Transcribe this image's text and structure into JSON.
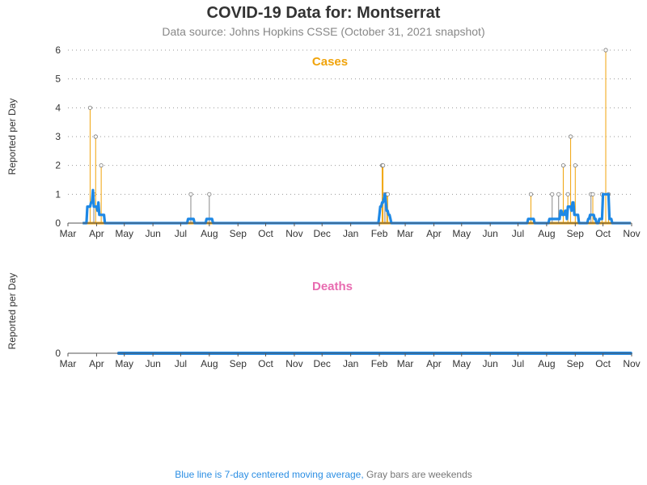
{
  "title": "COVID-19 Data for: Montserrat",
  "subtitle": "Data source: Johns Hopkins CSSE (October 31, 2021 snapshot)",
  "footer": {
    "blue_text": "Blue line is 7-day centered moving average,",
    "gray_text": "Gray bars are weekends"
  },
  "colors": {
    "cases": "#f0a30a",
    "deaths": "#e86bb0",
    "average": "#1e88e5",
    "weekend": "#888888",
    "grid": "#999999"
  },
  "chart_data": [
    {
      "type": "line",
      "title": "Cases",
      "ylabel": "Reported per Day",
      "ylim": [
        0,
        6
      ],
      "yticks": [
        0,
        1,
        2,
        3,
        4,
        5,
        6
      ],
      "grid": "horizontal dotted",
      "x_ticks": [
        "Mar",
        "Apr",
        "May",
        "Jun",
        "Jul",
        "Aug",
        "Sep",
        "Oct",
        "Nov",
        "Dec",
        "Jan",
        "Feb",
        "Mar",
        "Apr",
        "May",
        "Jun",
        "Jul",
        "Aug",
        "Sep",
        "Oct",
        "Nov"
      ],
      "nonzero_points": [
        {
          "date": "2020-03-25",
          "value": 4
        },
        {
          "date": "2020-03-29",
          "value": 1
        },
        {
          "date": "2020-03-31",
          "value": 3
        },
        {
          "date": "2020-04-06",
          "value": 2
        },
        {
          "date": "2020-07-12",
          "value": 1
        },
        {
          "date": "2020-08-01",
          "value": 1
        },
        {
          "date": "2021-02-04",
          "value": 2
        },
        {
          "date": "2021-02-05",
          "value": 2
        },
        {
          "date": "2021-02-07",
          "value": 1
        },
        {
          "date": "2021-02-09",
          "value": 1
        },
        {
          "date": "2021-02-10",
          "value": 1
        },
        {
          "date": "2021-07-15",
          "value": 1
        },
        {
          "date": "2021-08-07",
          "value": 1
        },
        {
          "date": "2021-08-14",
          "value": 1
        },
        {
          "date": "2021-08-19",
          "value": 2
        },
        {
          "date": "2021-08-24",
          "value": 1
        },
        {
          "date": "2021-08-27",
          "value": 3
        },
        {
          "date": "2021-09-01",
          "value": 2
        },
        {
          "date": "2021-09-18",
          "value": 1
        },
        {
          "date": "2021-09-20",
          "value": 1
        },
        {
          "date": "2021-09-30",
          "value": 1
        },
        {
          "date": "2021-10-04",
          "value": 6
        },
        {
          "date": "2021-10-07",
          "value": 1
        }
      ],
      "data_start": "2020-03-17",
      "data_end": "2021-10-31",
      "moving_average": "7-day centered"
    },
    {
      "type": "line",
      "title": "Deaths",
      "ylabel": "Reported per Day",
      "yticks": [
        0
      ],
      "x_ticks": [
        "Mar",
        "Apr",
        "May",
        "Jun",
        "Jul",
        "Aug",
        "Sep",
        "Oct",
        "Nov",
        "Dec",
        "Jan",
        "Feb",
        "Mar",
        "Apr",
        "May",
        "Jun",
        "Jul",
        "Aug",
        "Sep",
        "Oct",
        "Nov"
      ],
      "values": "all 0",
      "data_start": "2020-04-25",
      "data_end": "2021-10-31"
    }
  ]
}
